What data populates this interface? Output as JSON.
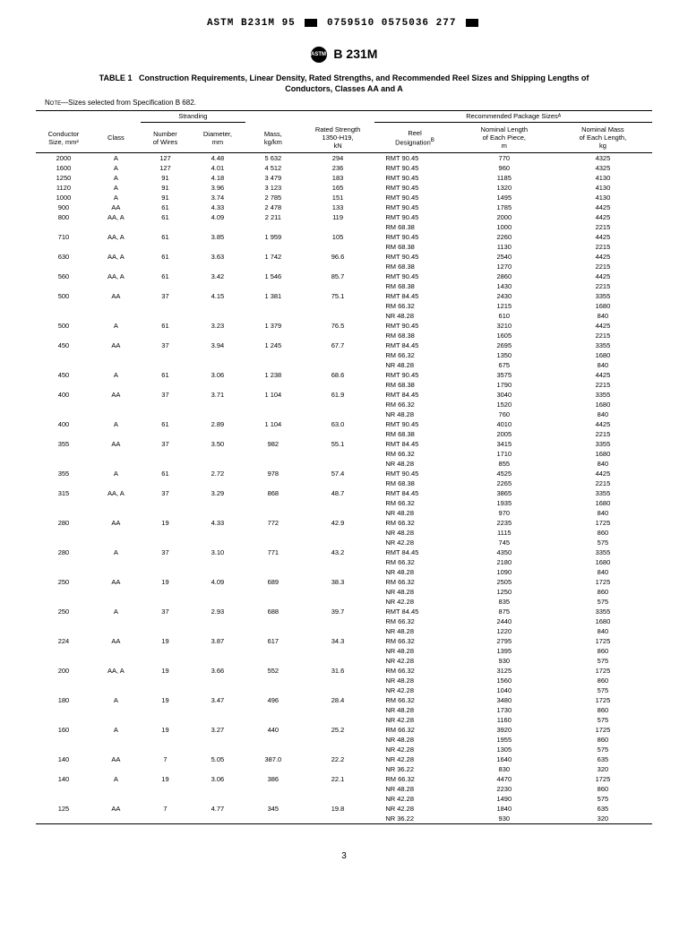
{
  "header_code": "ASTM B231M 95 ■ 0759510 0575036 277 ■",
  "standard_code": "B 231M",
  "table_num": "TABLE 1",
  "table_title": "Construction Requirements, Linear Density, Rated Strengths, and Recommended Reel Sizes and Shipping Lengths of",
  "table_title2": "Conductors, Classes AA and A",
  "note_label": "Note—",
  "note_text": "Sizes selected from Specification B 682.",
  "group_stranding": "Stranding",
  "group_package": "Recommended Package Sizesᴬ",
  "cols": {
    "size": "Conductor\nSize, mm²",
    "class": "Class",
    "wires": "Number\nof Wires",
    "diameter": "Diameter,\nmm",
    "mass": "Mass,\nkg/km",
    "strength": "Rated Strength\n1350-H19,\nkN",
    "reel": "Reel\nDesignationᴮ",
    "length": "Nominal Length\nof Each Piece,\nm",
    "nmass": "Nominal Mass\nof Each Length,\nkg"
  },
  "rows": [
    [
      "2000",
      "A",
      "127",
      "4.48",
      "5 632",
      "294",
      "RMT 90.45",
      "770",
      "4325"
    ],
    [
      "1600",
      "A",
      "127",
      "4.01",
      "4 512",
      "236",
      "RMT 90.45",
      "960",
      "4325"
    ],
    [
      "1250",
      "A",
      "91",
      "4.18",
      "3 479",
      "183",
      "RMT 90.45",
      "1185",
      "4130"
    ],
    [
      "1120",
      "A",
      "91",
      "3.96",
      "3 123",
      "165",
      "RMT 90.45",
      "1320",
      "4130"
    ],
    [
      "1000",
      "A",
      "91",
      "3.74",
      "2 785",
      "151",
      "RMT 90.45",
      "1495",
      "4130"
    ],
    [
      "900",
      "AA",
      "61",
      "4.33",
      "2 478",
      "133",
      "RMT 90.45",
      "1785",
      "4425"
    ],
    [
      "800",
      "AA, A",
      "61",
      "4.09",
      "2 211",
      "119",
      "RMT 90.45",
      "2000",
      "4425"
    ],
    [
      "",
      "",
      "",
      "",
      "",
      "",
      "RM 68.38",
      "1000",
      "2215"
    ],
    [
      "710",
      "AA, A",
      "61",
      "3.85",
      "1 959",
      "105",
      "RMT 90.45",
      "2260",
      "4425"
    ],
    [
      "",
      "",
      "",
      "",
      "",
      "",
      "RM 68.38",
      "1130",
      "2215"
    ],
    [
      "630",
      "AA, A",
      "61",
      "3.63",
      "1 742",
      "96.6",
      "RMT 90.45",
      "2540",
      "4425"
    ],
    [
      "",
      "",
      "",
      "",
      "",
      "",
      "RM 68.38",
      "1270",
      "2215"
    ],
    [
      "560",
      "AA, A",
      "61",
      "3.42",
      "1 546",
      "85.7",
      "RMT 90.45",
      "2860",
      "4425"
    ],
    [
      "",
      "",
      "",
      "",
      "",
      "",
      "RM 68.38",
      "1430",
      "2215"
    ],
    [
      "500",
      "AA",
      "37",
      "4.15",
      "1 381",
      "75.1",
      "RMT 84.45",
      "2430",
      "3355"
    ],
    [
      "",
      "",
      "",
      "",
      "",
      "",
      "RM 66.32",
      "1215",
      "1680"
    ],
    [
      "",
      "",
      "",
      "",
      "",
      "",
      "NR 48.28",
      "610",
      "840"
    ],
    [
      "500",
      "A",
      "61",
      "3.23",
      "1 379",
      "76.5",
      "RMT 90.45",
      "3210",
      "4425"
    ],
    [
      "",
      "",
      "",
      "",
      "",
      "",
      "RM 68.38",
      "1605",
      "2215"
    ],
    [
      "450",
      "AA",
      "37",
      "3.94",
      "1 245",
      "67.7",
      "RMT 84.45",
      "2695",
      "3355"
    ],
    [
      "",
      "",
      "",
      "",
      "",
      "",
      "RM 66.32",
      "1350",
      "1680"
    ],
    [
      "",
      "",
      "",
      "",
      "",
      "",
      "NR 48.28",
      "675",
      "840"
    ],
    [
      "450",
      "A",
      "61",
      "3.06",
      "1 238",
      "68.6",
      "RMT 90.45",
      "3575",
      "4425"
    ],
    [
      "",
      "",
      "",
      "",
      "",
      "",
      "RM 68.38",
      "1790",
      "2215"
    ],
    [
      "400",
      "AA",
      "37",
      "3.71",
      "1 104",
      "61.9",
      "RMT 84.45",
      "3040",
      "3355"
    ],
    [
      "",
      "",
      "",
      "",
      "",
      "",
      "RM 66.32",
      "1520",
      "1680"
    ],
    [
      "",
      "",
      "",
      "",
      "",
      "",
      "NR 48.28",
      "760",
      "840"
    ],
    [
      "400",
      "A",
      "61",
      "2.89",
      "1 104",
      "63.0",
      "RMT 90.45",
      "4010",
      "4425"
    ],
    [
      "",
      "",
      "",
      "",
      "",
      "",
      "RM 68.38",
      "2005",
      "2215"
    ],
    [
      "355",
      "AA",
      "37",
      "3.50",
      "982",
      "55.1",
      "RMT 84.45",
      "3415",
      "3355"
    ],
    [
      "",
      "",
      "",
      "",
      "",
      "",
      "RM 66.32",
      "1710",
      "1680"
    ],
    [
      "",
      "",
      "",
      "",
      "",
      "",
      "NR 48.28",
      "855",
      "840"
    ],
    [
      "355",
      "A",
      "61",
      "2.72",
      "978",
      "57.4",
      "RMT 90.45",
      "4525",
      "4425"
    ],
    [
      "",
      "",
      "",
      "",
      "",
      "",
      "RM 68.38",
      "2265",
      "2215"
    ],
    [
      "315",
      "AA, A",
      "37",
      "3.29",
      "868",
      "48.7",
      "RMT 84.45",
      "3865",
      "3355"
    ],
    [
      "",
      "",
      "",
      "",
      "",
      "",
      "RM 66.32",
      "1935",
      "1680"
    ],
    [
      "",
      "",
      "",
      "",
      "",
      "",
      "NR 48.28",
      "970",
      "840"
    ],
    [
      "280",
      "AA",
      "19",
      "4.33",
      "772",
      "42.9",
      "RM 66.32",
      "2235",
      "1725"
    ],
    [
      "",
      "",
      "",
      "",
      "",
      "",
      "NR 48.28",
      "1115",
      "860"
    ],
    [
      "",
      "",
      "",
      "",
      "",
      "",
      "NR 42.28",
      "745",
      "575"
    ],
    [
      "280",
      "A",
      "37",
      "3.10",
      "771",
      "43.2",
      "RMT 84.45",
      "4350",
      "3355"
    ],
    [
      "",
      "",
      "",
      "",
      "",
      "",
      "RM 66.32",
      "2180",
      "1680"
    ],
    [
      "",
      "",
      "",
      "",
      "",
      "",
      "NR 48.28",
      "1090",
      "840"
    ],
    [
      "250",
      "AA",
      "19",
      "4.09",
      "689",
      "38.3",
      "RM 66.32",
      "2505",
      "1725"
    ],
    [
      "",
      "",
      "",
      "",
      "",
      "",
      "NR 48.28",
      "1250",
      "860"
    ],
    [
      "",
      "",
      "",
      "",
      "",
      "",
      "NR 42.28",
      "835",
      "575"
    ],
    [
      "250",
      "A",
      "37",
      "2.93",
      "688",
      "39.7",
      "RMT 84.45",
      "875",
      "3355"
    ],
    [
      "",
      "",
      "",
      "",
      "",
      "",
      "RM 66.32",
      "2440",
      "1680"
    ],
    [
      "",
      "",
      "",
      "",
      "",
      "",
      "NR 48.28",
      "1220",
      "840"
    ],
    [
      "224",
      "AA",
      "19",
      "3.87",
      "617",
      "34.3",
      "RM 66.32",
      "2795",
      "1725"
    ],
    [
      "",
      "",
      "",
      "",
      "",
      "",
      "NR 48.28",
      "1395",
      "860"
    ],
    [
      "",
      "",
      "",
      "",
      "",
      "",
      "NR 42.28",
      "930",
      "575"
    ],
    [
      "200",
      "AA, A",
      "19",
      "3.66",
      "552",
      "31.6",
      "RM 66.32",
      "3125",
      "1725"
    ],
    [
      "",
      "",
      "",
      "",
      "",
      "",
      "NR 48.28",
      "1560",
      "860"
    ],
    [
      "",
      "",
      "",
      "",
      "",
      "",
      "NR 42.28",
      "1040",
      "575"
    ],
    [
      "180",
      "A",
      "19",
      "3.47",
      "496",
      "28.4",
      "RM 66.32",
      "3480",
      "1725"
    ],
    [
      "",
      "",
      "",
      "",
      "",
      "",
      "NR 48.28",
      "1730",
      "860"
    ],
    [
      "",
      "",
      "",
      "",
      "",
      "",
      "NR 42.28",
      "1160",
      "575"
    ],
    [
      "160",
      "A",
      "19",
      "3.27",
      "440",
      "25.2",
      "RM 66.32",
      "3920",
      "1725"
    ],
    [
      "",
      "",
      "",
      "",
      "",
      "",
      "NR 48.28",
      "1955",
      "860"
    ],
    [
      "",
      "",
      "",
      "",
      "",
      "",
      "NR 42.28",
      "1305",
      "575"
    ],
    [
      "140",
      "AA",
      "7",
      "5.05",
      "387.0",
      "22.2",
      "NR 42.28",
      "1640",
      "635"
    ],
    [
      "",
      "",
      "",
      "",
      "",
      "",
      "NR 36.22",
      "830",
      "320"
    ],
    [
      "140",
      "A",
      "19",
      "3.06",
      "386",
      "22.1",
      "RM 66.32",
      "4470",
      "1725"
    ],
    [
      "",
      "",
      "",
      "",
      "",
      "",
      "NR 48.28",
      "2230",
      "860"
    ],
    [
      "",
      "",
      "",
      "",
      "",
      "",
      "NR 42.28",
      "1490",
      "575"
    ],
    [
      "125",
      "AA",
      "7",
      "4.77",
      "345",
      "19.8",
      "NR 42.28",
      "1840",
      "635"
    ],
    [
      "",
      "",
      "",
      "",
      "",
      "",
      "NR 36.22",
      "930",
      "320"
    ]
  ],
  "page": "3"
}
